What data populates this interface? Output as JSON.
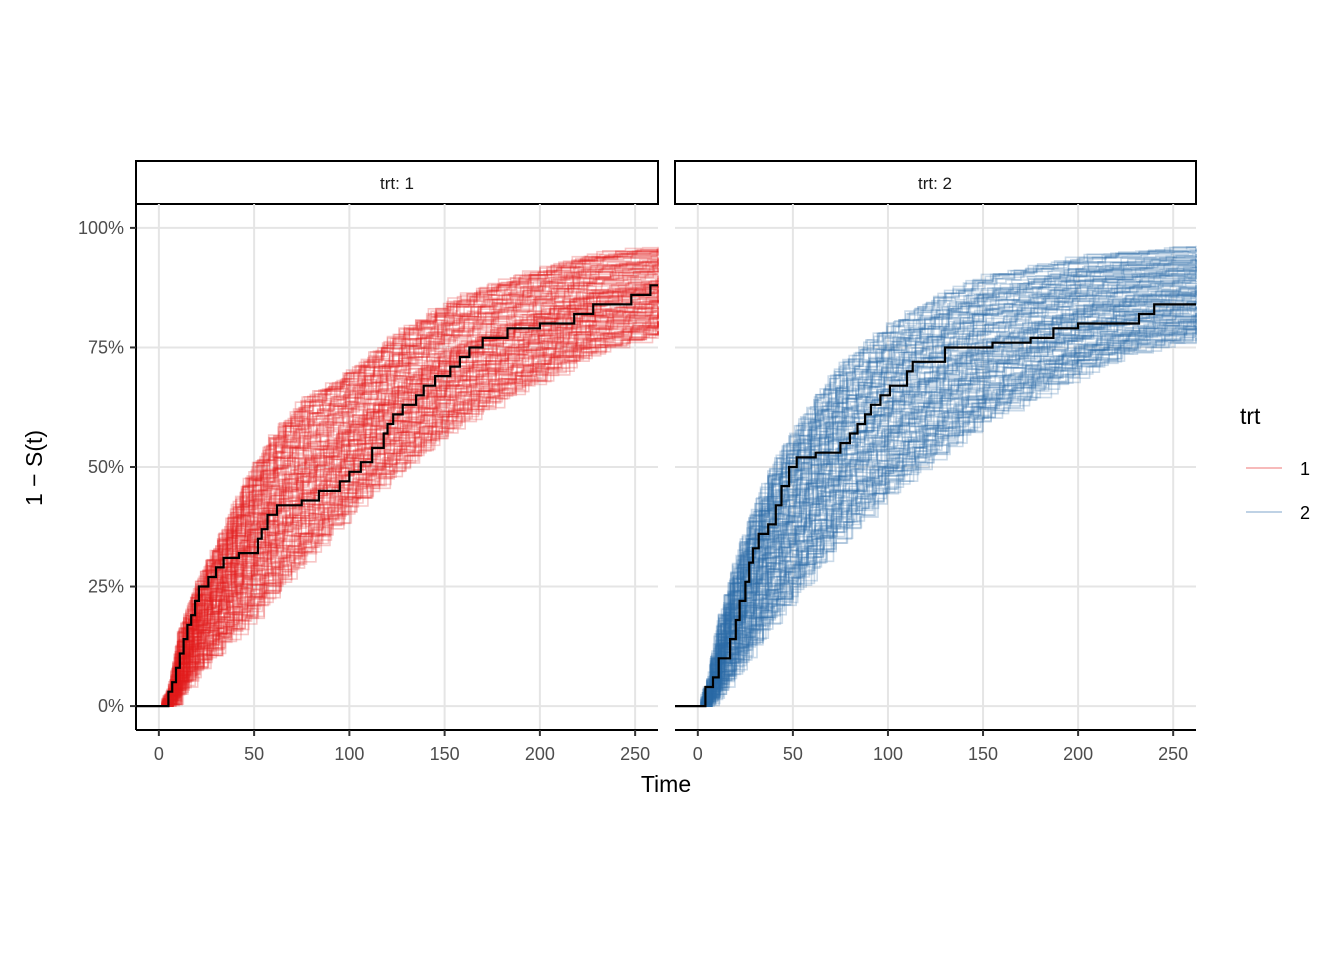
{
  "chart_data": {
    "type": "line",
    "xlabel": "Time",
    "ylabel": "1 − S(t)",
    "xlim": [
      -12,
      262
    ],
    "ylim": [
      -0.05,
      1.05
    ],
    "x_ticks": [
      0,
      50,
      100,
      150,
      200,
      250
    ],
    "x_tick_labels": [
      "0",
      "50",
      "100",
      "150",
      "200",
      "250"
    ],
    "y_ticks": [
      0,
      0.25,
      0.5,
      0.75,
      1.0
    ],
    "y_tick_labels": [
      "0%",
      "25%",
      "50%",
      "75%",
      "100%"
    ],
    "grid": true,
    "legend": {
      "title": "trt",
      "position": "right",
      "entries": [
        "1",
        "2"
      ]
    },
    "simulated_draws": {
      "per_panel": 150,
      "opacity": 0.25,
      "line_style": "step"
    },
    "panels": [
      {
        "strip": "trt: 1",
        "group": "1",
        "color": "#e41a1c",
        "band": {
          "x": [
            0,
            5,
            10,
            20,
            30,
            40,
            50,
            60,
            75,
            100,
            125,
            150,
            175,
            200,
            225,
            262
          ],
          "low": [
            0,
            0,
            0.03,
            0.08,
            0.12,
            0.16,
            0.2,
            0.25,
            0.31,
            0.42,
            0.5,
            0.58,
            0.64,
            0.69,
            0.74,
            0.78
          ],
          "high": [
            0,
            0.04,
            0.16,
            0.27,
            0.35,
            0.44,
            0.52,
            0.58,
            0.65,
            0.71,
            0.79,
            0.85,
            0.89,
            0.92,
            0.95,
            0.96
          ]
        },
        "observed": [
          [
            -12,
            0
          ],
          [
            3,
            0
          ],
          [
            5,
            0.03
          ],
          [
            7,
            0.05
          ],
          [
            9,
            0.08
          ],
          [
            11,
            0.11
          ],
          [
            13,
            0.14
          ],
          [
            15,
            0.17
          ],
          [
            17,
            0.19
          ],
          [
            19,
            0.22
          ],
          [
            21,
            0.25
          ],
          [
            26,
            0.27
          ],
          [
            30,
            0.29
          ],
          [
            34,
            0.31
          ],
          [
            42,
            0.32
          ],
          [
            52,
            0.35
          ],
          [
            54,
            0.37
          ],
          [
            57,
            0.4
          ],
          [
            62,
            0.42
          ],
          [
            75,
            0.43
          ],
          [
            84,
            0.45
          ],
          [
            95,
            0.47
          ],
          [
            100,
            0.49
          ],
          [
            106,
            0.51
          ],
          [
            112,
            0.54
          ],
          [
            118,
            0.57
          ],
          [
            120,
            0.59
          ],
          [
            123,
            0.61
          ],
          [
            128,
            0.63
          ],
          [
            135,
            0.65
          ],
          [
            139,
            0.67
          ],
          [
            145,
            0.69
          ],
          [
            153,
            0.71
          ],
          [
            158,
            0.73
          ],
          [
            163,
            0.75
          ],
          [
            170,
            0.77
          ],
          [
            183,
            0.79
          ],
          [
            200,
            0.8
          ],
          [
            218,
            0.82
          ],
          [
            228,
            0.84
          ],
          [
            248,
            0.86
          ],
          [
            258,
            0.88
          ],
          [
            262,
            0.88
          ]
        ]
      },
      {
        "strip": "trt: 2",
        "group": "2",
        "color": "#2c6aa8",
        "band": {
          "x": [
            0,
            5,
            10,
            20,
            30,
            40,
            50,
            60,
            75,
            100,
            125,
            150,
            175,
            200,
            225,
            262
          ],
          "low": [
            0,
            0,
            0.03,
            0.08,
            0.14,
            0.19,
            0.24,
            0.29,
            0.36,
            0.45,
            0.53,
            0.6,
            0.65,
            0.7,
            0.74,
            0.77
          ],
          "high": [
            0,
            0.06,
            0.18,
            0.32,
            0.43,
            0.52,
            0.58,
            0.64,
            0.72,
            0.8,
            0.86,
            0.9,
            0.92,
            0.94,
            0.95,
            0.96
          ]
        },
        "observed": [
          [
            -12,
            0
          ],
          [
            2,
            0
          ],
          [
            4,
            0.04
          ],
          [
            8,
            0.06
          ],
          [
            11,
            0.1
          ],
          [
            17,
            0.14
          ],
          [
            20,
            0.18
          ],
          [
            22,
            0.22
          ],
          [
            25,
            0.26
          ],
          [
            27,
            0.3
          ],
          [
            29,
            0.33
          ],
          [
            32,
            0.36
          ],
          [
            37,
            0.38
          ],
          [
            41,
            0.42
          ],
          [
            44,
            0.46
          ],
          [
            48,
            0.5
          ],
          [
            52,
            0.52
          ],
          [
            62,
            0.53
          ],
          [
            75,
            0.55
          ],
          [
            80,
            0.57
          ],
          [
            84,
            0.59
          ],
          [
            88,
            0.61
          ],
          [
            91,
            0.63
          ],
          [
            96,
            0.65
          ],
          [
            101,
            0.67
          ],
          [
            110,
            0.7
          ],
          [
            113,
            0.72
          ],
          [
            130,
            0.75
          ],
          [
            155,
            0.76
          ],
          [
            175,
            0.77
          ],
          [
            187,
            0.79
          ],
          [
            200,
            0.8
          ],
          [
            232,
            0.82
          ],
          [
            240,
            0.84
          ],
          [
            262,
            0.84
          ]
        ]
      }
    ]
  }
}
